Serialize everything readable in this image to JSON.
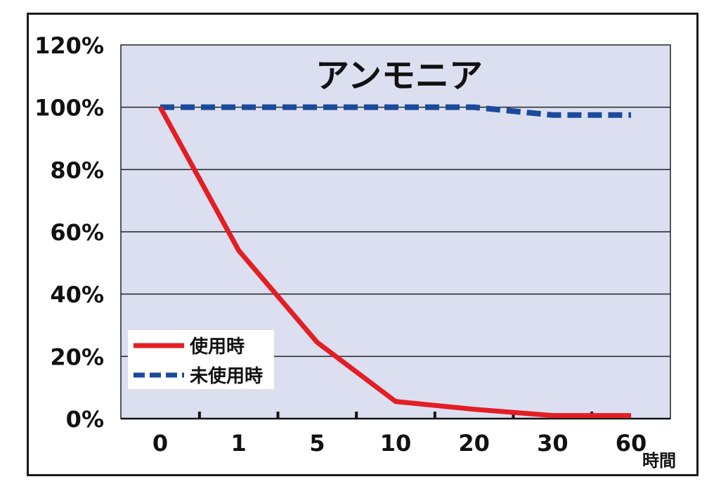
{
  "chart_data": {
    "type": "line",
    "title": "アンモニア",
    "categories": [
      "0",
      "1",
      "5",
      "10",
      "20",
      "30",
      "60"
    ],
    "x_unit": "時間",
    "ylim": [
      0,
      120
    ],
    "yticks": [
      "0%",
      "20%",
      "40%",
      "60%",
      "80%",
      "100%",
      "120%"
    ],
    "grid": true,
    "legend_position": "bottom-left",
    "series": [
      {
        "name": "使用時",
        "color": "#e31e24",
        "style": "solid",
        "values": [
          100,
          54,
          24.5,
          5.5,
          3,
          1,
          1
        ]
      },
      {
        "name": "未使用時",
        "color": "#1a4a9c",
        "style": "dashed",
        "values": [
          100,
          100,
          100,
          100,
          100,
          97.5,
          97.5
        ]
      }
    ],
    "plot_background": "#dcdff0"
  }
}
